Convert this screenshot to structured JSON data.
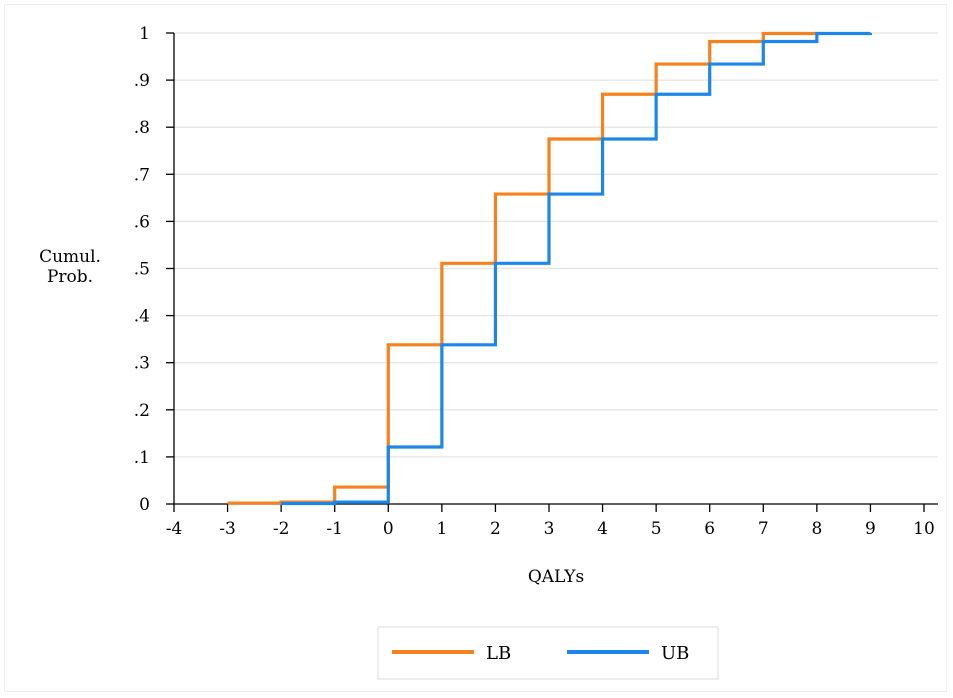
{
  "chart_data": {
    "type": "line",
    "step": true,
    "title": "",
    "xlabel": "QALYs",
    "ylabel": "Cumul.\nProb.",
    "xlim": [
      -4,
      10
    ],
    "ylim": [
      0,
      1
    ],
    "xticks": [
      -4,
      -3,
      -2,
      -1,
      0,
      1,
      2,
      3,
      4,
      5,
      6,
      7,
      8,
      9,
      10
    ],
    "xtick_labels": [
      "-4",
      "-3",
      "-2",
      "-1",
      "0",
      "1",
      "2",
      "3",
      "4",
      "5",
      "6",
      "7",
      "8",
      "9",
      "10"
    ],
    "yticks": [
      0,
      0.1,
      0.2,
      0.3,
      0.4,
      0.5,
      0.6,
      0.7,
      0.8,
      0.9,
      1
    ],
    "ytick_labels": [
      "0",
      ".1",
      ".2",
      ".3",
      ".4",
      ".5",
      ".6",
      ".7",
      ".8",
      ".9",
      "1"
    ],
    "grid": "horizontal",
    "legend": "bottom-center",
    "series": [
      {
        "name": "LB",
        "color": "#f5821f",
        "x": [
          -3,
          -2,
          -1,
          0,
          1,
          2,
          3,
          4,
          5,
          6,
          7,
          8
        ],
        "y": [
          0.002,
          0.004,
          0.036,
          0.338,
          0.511,
          0.658,
          0.775,
          0.87,
          0.934,
          0.982,
          0.999,
          1.0
        ]
      },
      {
        "name": "UB",
        "color": "#1c87e8",
        "x": [
          -2,
          -1,
          0,
          1,
          2,
          3,
          4,
          5,
          6,
          7,
          8,
          9
        ],
        "y": [
          0.001,
          0.004,
          0.121,
          0.338,
          0.511,
          0.658,
          0.775,
          0.87,
          0.934,
          0.982,
          0.999,
          1.0
        ]
      }
    ]
  }
}
